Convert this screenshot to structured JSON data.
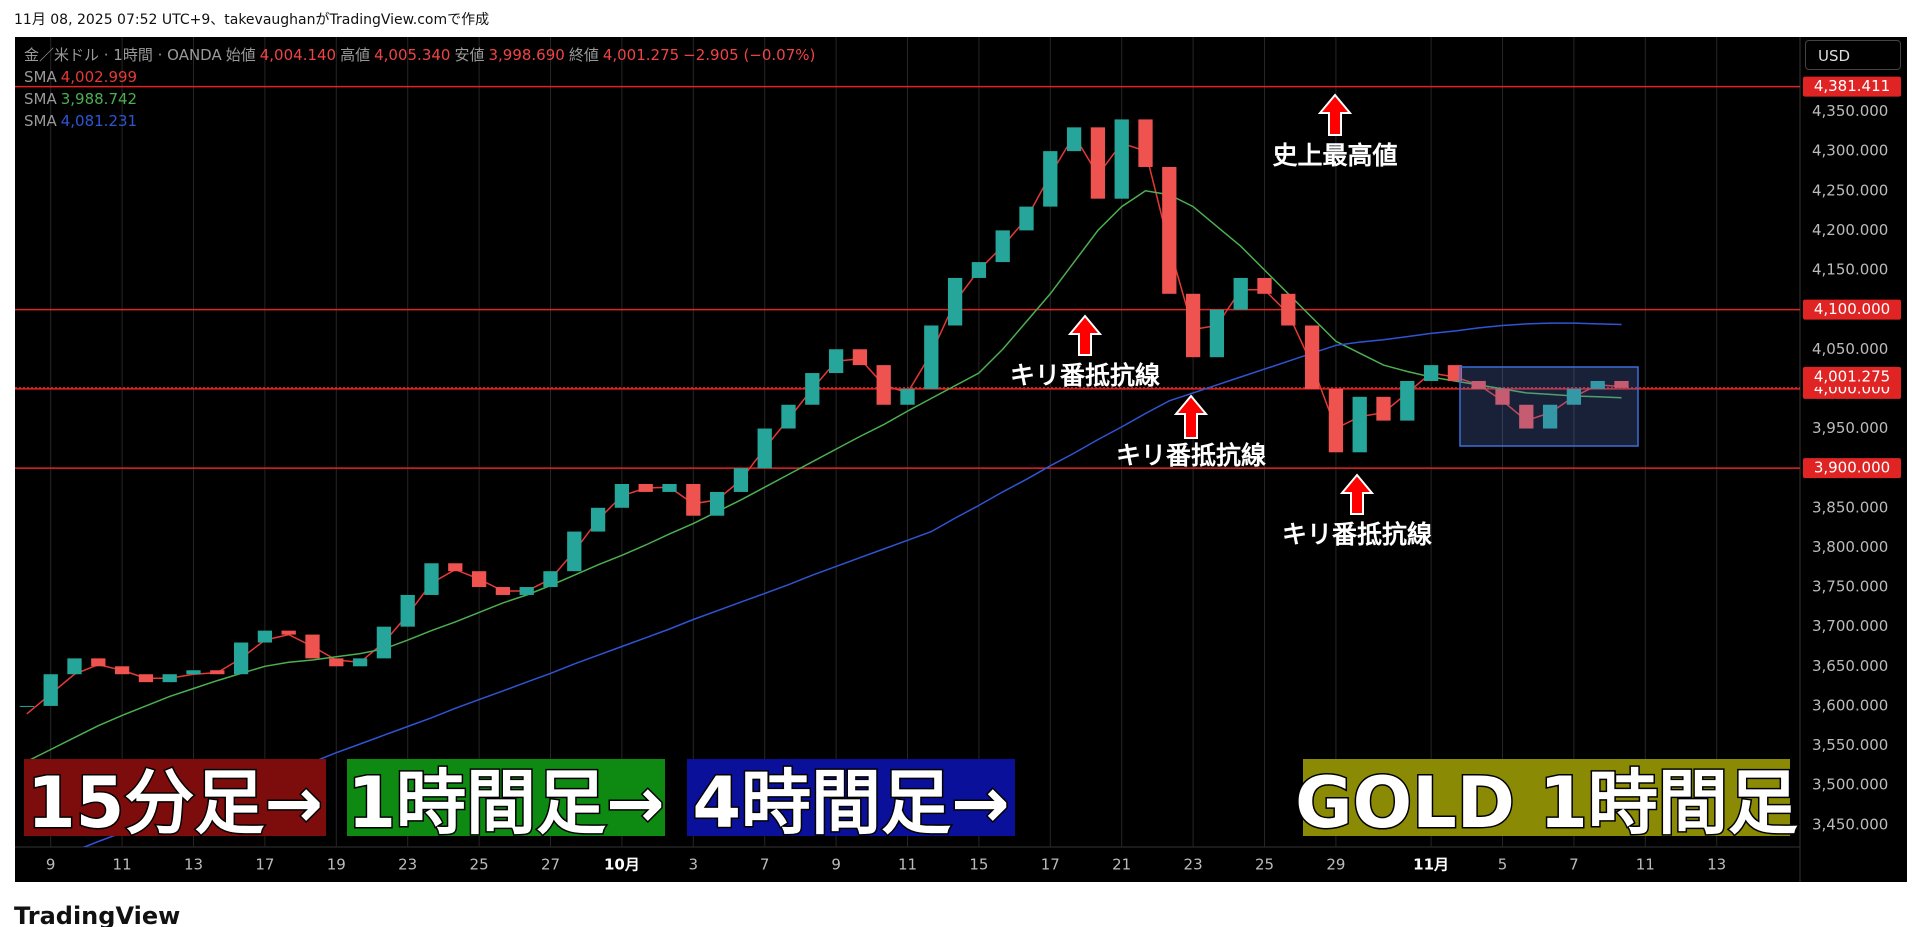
{
  "header": "11月 08, 2025 07:52 UTC+9、takevaughanがTradingView.comで作成",
  "footer": "TradingView",
  "currency": "USD",
  "chart_data": {
    "type": "candlestick",
    "title": "金／米ドル · 1時間 · OANDA",
    "ohlc": [
      {
        "name": "始値",
        "value_label": "4,004.140"
      },
      {
        "name": "高値",
        "value_label": "4,005.340"
      },
      {
        "name": "安値",
        "value_label": "3,998.690"
      },
      {
        "name": "終値",
        "value_label": "4,001.275"
      }
    ],
    "change": "−2.905 (−0.07%)",
    "categories": [
      null,
      "9",
      null,
      null,
      "11",
      null,
      null,
      "13",
      null,
      null,
      "17",
      null,
      null,
      "19",
      null,
      null,
      "23",
      null,
      null,
      "25",
      null,
      null,
      "27",
      null,
      null,
      "10月",
      null,
      null,
      "3",
      null,
      null,
      "7",
      null,
      null,
      "9",
      null,
      null,
      "11",
      null,
      null,
      "15",
      null,
      null,
      "17",
      null,
      null,
      "21",
      null,
      null,
      "23",
      null,
      null,
      "25",
      null,
      null,
      "29",
      null,
      null,
      null,
      "11月",
      null,
      null,
      "5",
      null,
      null,
      "7",
      null,
      null,
      "11",
      null,
      null,
      "13",
      null,
      null,
      null
    ],
    "values": [
      3600,
      3640,
      3660,
      3650,
      3640,
      3630,
      3640,
      3645,
      3640,
      3680,
      3695,
      3690,
      3660,
      3650,
      3660,
      3700,
      3740,
      3780,
      3770,
      3750,
      3740,
      3750,
      3770,
      3820,
      3850,
      3880,
      3870,
      3880,
      3840,
      3870,
      3900,
      3950,
      3980,
      4020,
      4050,
      4030,
      3980,
      4000,
      4080,
      4140,
      4160,
      4200,
      4230,
      4300,
      4330,
      4240,
      4340,
      4280,
      4120,
      4040,
      4100,
      4140,
      4120,
      4080,
      4000,
      3920,
      3990,
      3960,
      4010,
      4030,
      4010,
      4000,
      3980,
      3950,
      3980,
      4000,
      4010,
      4001.275,
      null,
      null,
      null,
      null,
      null,
      null,
      null
    ],
    "up_color": "#26a69a",
    "down_color": "#ef5350",
    "series": [
      {
        "name": "SMA",
        "color": "#e53935",
        "value_label": "4,002.999",
        "values": [
          3590,
          3615,
          3640,
          3652,
          3645,
          3635,
          3635,
          3640,
          3642,
          3660,
          3683,
          3690,
          3675,
          3658,
          3655,
          3680,
          3715,
          3755,
          3772,
          3760,
          3745,
          3745,
          3760,
          3795,
          3835,
          3865,
          3875,
          3876,
          3855,
          3860,
          3885,
          3925,
          3962,
          4000,
          4035,
          4038,
          4005,
          3995,
          4045,
          4110,
          4150,
          4180,
          4215,
          4270,
          4320,
          4270,
          4310,
          4300,
          4180,
          4075,
          4080,
          4125,
          4125,
          4095,
          4030,
          3950,
          3965,
          3970,
          3995,
          4020,
          4015,
          4005,
          3985,
          3960,
          3970,
          3990,
          4005,
          4002.999,
          null,
          null,
          null,
          null,
          null,
          null,
          null
        ]
      },
      {
        "name": "SMA",
        "color": "#4caf50",
        "value_label": "3,988.742",
        "values": [
          3530,
          3545,
          3560,
          3575,
          3588,
          3600,
          3612,
          3622,
          3632,
          3641,
          3650,
          3655,
          3658,
          3662,
          3666,
          3672,
          3683,
          3695,
          3706,
          3718,
          3730,
          3740,
          3752,
          3765,
          3778,
          3790,
          3803,
          3817,
          3830,
          3845,
          3860,
          3876,
          3892,
          3908,
          3924,
          3940,
          3955,
          3972,
          3988,
          4004,
          4020,
          4050,
          4085,
          4120,
          4160,
          4200,
          4230,
          4250,
          4245,
          4230,
          4205,
          4180,
          4150,
          4120,
          4090,
          4060,
          4045,
          4030,
          4022,
          4015,
          4010,
          4005,
          4000,
          3995,
          3993,
          3991,
          3990,
          3988.742,
          null,
          null,
          null,
          null,
          null,
          null,
          null
        ]
      },
      {
        "name": "SMA",
        "color": "#2f55d4",
        "value_label": "4,081.231",
        "values": [
          3395,
          3406,
          3417,
          3429,
          3440,
          3451,
          3462,
          3473,
          3485,
          3496,
          3507,
          3518,
          3529,
          3541,
          3552,
          3563,
          3574,
          3585,
          3597,
          3608,
          3619,
          3630,
          3641,
          3653,
          3664,
          3675,
          3686,
          3697,
          3709,
          3720,
          3731,
          3742,
          3753,
          3765,
          3776,
          3787,
          3798,
          3809,
          3820,
          3837,
          3853,
          3870,
          3886,
          3903,
          3919,
          3936,
          3952,
          3969,
          3985,
          3995,
          4005,
          4015,
          4025,
          4035,
          4045,
          4055,
          4059,
          4062,
          4066,
          4070,
          4073,
          4077,
          4080,
          4082,
          4083,
          4083,
          4082,
          4081.231,
          null,
          null,
          null,
          null,
          null,
          null,
          null
        ]
      }
    ],
    "ylim": [
      3422,
      4444
    ],
    "yticks": [
      {
        "value": 3450,
        "label": "3,450.000"
      },
      {
        "value": 3500,
        "label": "3,500.000"
      },
      {
        "value": 3550,
        "label": "3,550.000"
      },
      {
        "value": 3600,
        "label": "3,600.000"
      },
      {
        "value": 3650,
        "label": "3,650.000"
      },
      {
        "value": 3700,
        "label": "3,700.000"
      },
      {
        "value": 3750,
        "label": "3,750.000"
      },
      {
        "value": 3800,
        "label": "3,800.000"
      },
      {
        "value": 3850,
        "label": "3,850.000"
      },
      {
        "value": 3950,
        "label": "3,950.000"
      },
      {
        "value": 4050,
        "label": "4,050.000"
      },
      {
        "value": 4150,
        "label": "4,150.000"
      },
      {
        "value": 4200,
        "label": "4,200.000"
      },
      {
        "value": 4250,
        "label": "4,250.000"
      },
      {
        "value": 4300,
        "label": "4,300.000"
      },
      {
        "value": 4350,
        "label": "4,350.000"
      }
    ],
    "levels": [
      {
        "value": 4381.411,
        "label": "4,381.411"
      },
      {
        "value": 4100,
        "label": "4,100.000"
      },
      {
        "value": 4000,
        "label": "4,000.000"
      },
      {
        "value": 3900,
        "label": "3,900.000"
      }
    ],
    "level_color": "#e02424",
    "last_price": {
      "value": 4001.275,
      "label": "4,001.275"
    },
    "grid": true,
    "annotations": [
      "史上最高値",
      "キリ番抵抗線",
      "キリ番抵抗線",
      "キリ番抵抗線"
    ],
    "banners": [
      "15分足→",
      "1時間足→",
      "4時間足→",
      "GOLD 1時間足"
    ]
  }
}
